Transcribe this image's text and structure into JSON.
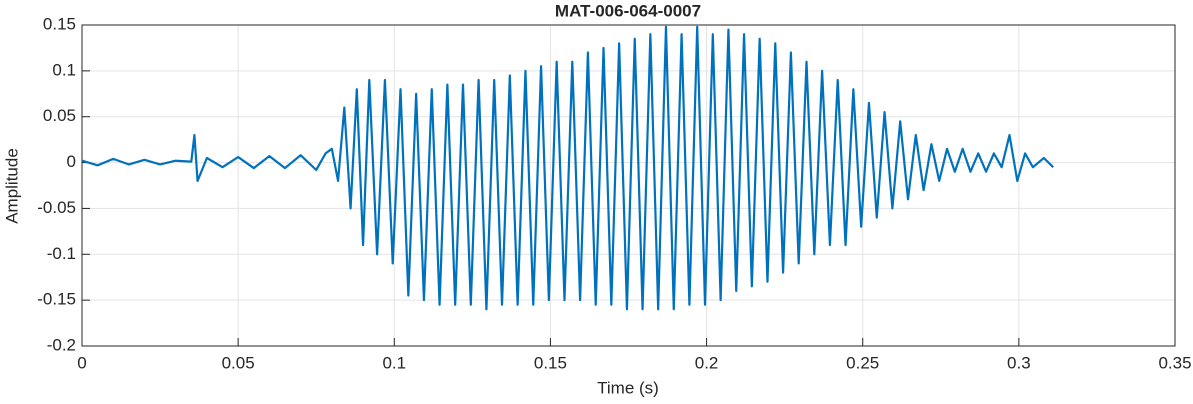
{
  "chart_data": {
    "type": "line",
    "title": "MAT-006-064-0007",
    "x_label": "Time (s)",
    "y_label": "Amplitude",
    "xlim": [
      0,
      0.35
    ],
    "xticks": [
      0,
      0.05,
      0.1,
      0.15,
      0.2,
      0.25,
      0.3,
      0.35
    ],
    "ylim": [
      -0.2,
      0.15
    ],
    "yticks": [
      -0.2,
      -0.15,
      -0.1,
      -0.05,
      0,
      0.05,
      0.1,
      0.15
    ],
    "grid": true,
    "series": [
      {
        "color": "#0072bd",
        "x": [
          0,
          0.005,
          0.01,
          0.015,
          0.02,
          0.025,
          0.03,
          0.035,
          0.036,
          0.037,
          0.04,
          0.045,
          0.05,
          0.055,
          0.06,
          0.065,
          0.07,
          0.075,
          0.078,
          0.08,
          0.082,
          0.084,
          0.086,
          0.088,
          0.09,
          0.092,
          0.0945,
          0.097,
          0.0995,
          0.102,
          0.1045,
          0.107,
          0.1095,
          0.112,
          0.1145,
          0.117,
          0.1195,
          0.122,
          0.1245,
          0.127,
          0.1295,
          0.132,
          0.1345,
          0.137,
          0.1395,
          0.142,
          0.1445,
          0.147,
          0.1495,
          0.152,
          0.1545,
          0.157,
          0.1595,
          0.162,
          0.1645,
          0.167,
          0.1695,
          0.172,
          0.1745,
          0.177,
          0.1795,
          0.182,
          0.1845,
          0.187,
          0.1895,
          0.192,
          0.1945,
          0.197,
          0.1995,
          0.202,
          0.2045,
          0.207,
          0.2095,
          0.212,
          0.2145,
          0.217,
          0.2195,
          0.222,
          0.2245,
          0.227,
          0.2295,
          0.232,
          0.2345,
          0.237,
          0.2395,
          0.242,
          0.2445,
          0.247,
          0.2495,
          0.252,
          0.2545,
          0.257,
          0.2595,
          0.262,
          0.2645,
          0.267,
          0.2695,
          0.272,
          0.2745,
          0.277,
          0.2795,
          0.282,
          0.2845,
          0.287,
          0.2895,
          0.292,
          0.2945,
          0.297,
          0.2995,
          0.302,
          0.3045,
          0.308,
          0.311
        ],
        "values": [
          0.002,
          -0.003,
          0.004,
          -0.002,
          0.003,
          -0.002,
          0.002,
          0.001,
          0.03,
          -0.02,
          0.005,
          -0.005,
          0.006,
          -0.006,
          0.007,
          -0.006,
          0.008,
          -0.008,
          0.01,
          0.015,
          -0.02,
          0.06,
          -0.05,
          0.08,
          -0.09,
          0.09,
          -0.1,
          0.09,
          -0.11,
          0.08,
          -0.145,
          0.075,
          -0.15,
          0.08,
          -0.155,
          0.085,
          -0.155,
          0.085,
          -0.155,
          0.09,
          -0.16,
          0.09,
          -0.155,
          0.095,
          -0.155,
          0.1,
          -0.155,
          0.105,
          -0.15,
          0.11,
          -0.15,
          0.11,
          -0.15,
          0.12,
          -0.155,
          0.125,
          -0.155,
          0.13,
          -0.16,
          0.135,
          -0.16,
          0.14,
          -0.16,
          0.148,
          -0.16,
          0.14,
          -0.155,
          0.148,
          -0.155,
          0.14,
          -0.15,
          0.145,
          -0.14,
          0.14,
          -0.135,
          0.135,
          -0.13,
          0.13,
          -0.12,
          0.12,
          -0.11,
          0.11,
          -0.1,
          0.1,
          -0.09,
          0.09,
          -0.09,
          0.08,
          -0.07,
          0.065,
          -0.06,
          0.055,
          -0.05,
          0.045,
          -0.04,
          0.03,
          -0.03,
          0.02,
          -0.02,
          0.015,
          -0.01,
          0.015,
          -0.01,
          0.01,
          -0.01,
          0.01,
          -0.005,
          0.03,
          -0.02,
          0.01,
          -0.005,
          0.005,
          -0.005
        ]
      }
    ]
  }
}
